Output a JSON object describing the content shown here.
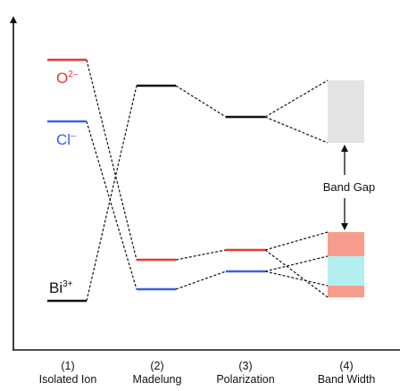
{
  "ions": [
    {
      "id": "O",
      "base": "O",
      "sup": "2–",
      "color": "#e8392f"
    },
    {
      "id": "Cl",
      "base": "Cl",
      "sup": "–",
      "color": "#3f5fe6"
    },
    {
      "id": "Bi",
      "base": "Bi",
      "sup": "3+",
      "color": "#111111"
    }
  ],
  "band_gap_label": "Band Gap",
  "stages": [
    {
      "number": "(1)",
      "name": "Isolated Ion"
    },
    {
      "number": "(2)",
      "name": "Madelung"
    },
    {
      "number": "(3)",
      "name": "Polarization"
    },
    {
      "number": "(4)",
      "name": "Band Width"
    }
  ],
  "colors": {
    "conduction_band": "#e3e3e3",
    "valence_o_band": "#f79d8d",
    "valence_cl_band": "#b3eef0",
    "connector": "#111111"
  }
}
